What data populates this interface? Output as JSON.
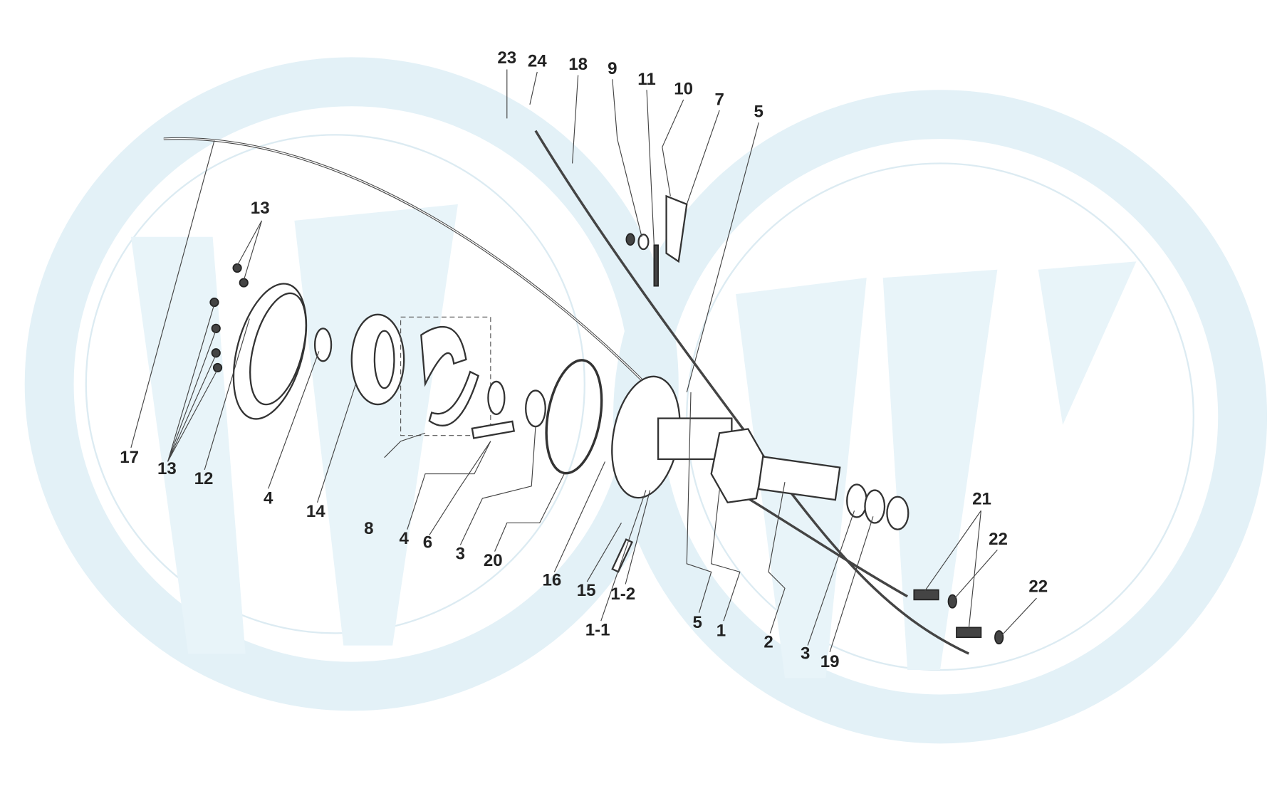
{
  "labels": [
    "23",
    "24",
    "18",
    "9",
    "11",
    "10",
    "7",
    "5",
    "13",
    "17",
    "13",
    "12",
    "4",
    "14",
    "8",
    "4",
    "6",
    "3",
    "20",
    "16",
    "15",
    "1-2",
    "1-1",
    "5",
    "1",
    "2",
    "3",
    "19",
    "21",
    "22",
    "22"
  ]
}
